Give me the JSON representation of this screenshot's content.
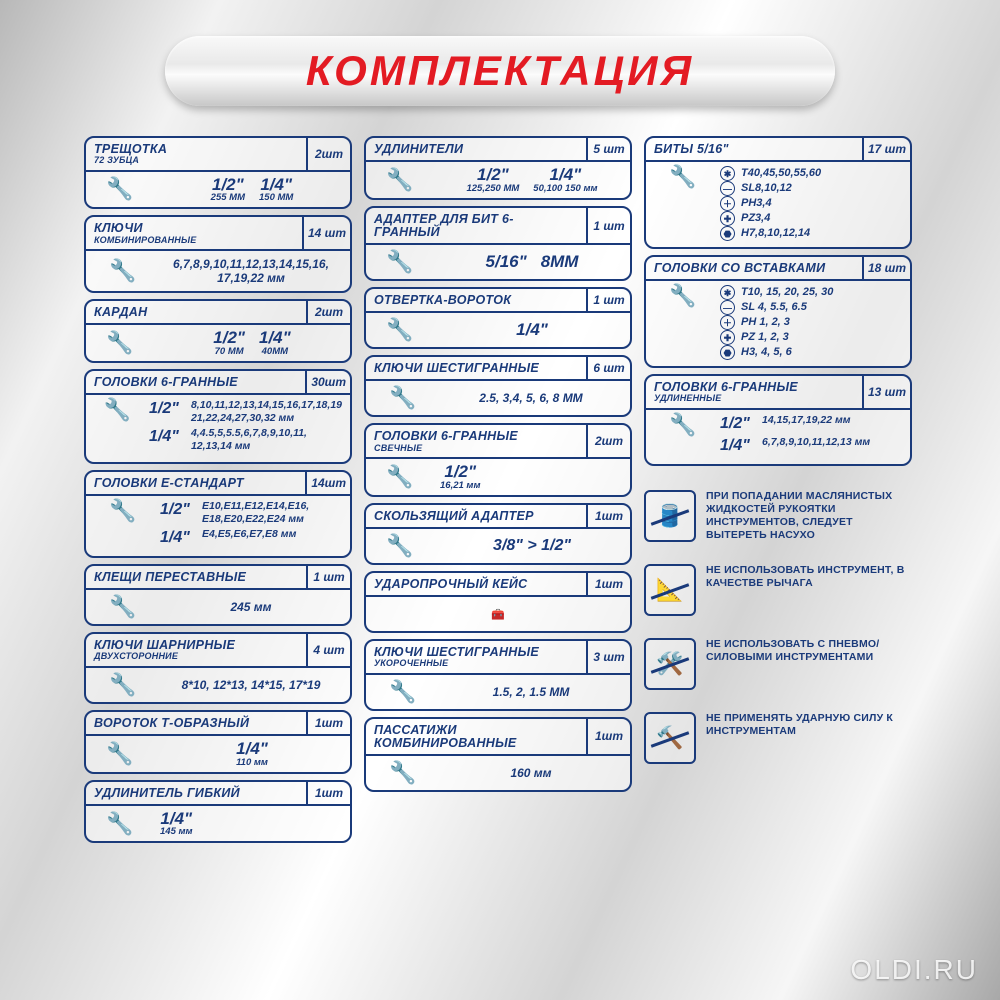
{
  "colors": {
    "primary": "#1a3a7a",
    "accent": "#e31b23"
  },
  "header": {
    "title": "КОМПЛЕКТАЦИЯ"
  },
  "watermark": "OLDI.RU",
  "col1": [
    {
      "title": "ТРЕЩОТКА",
      "sub": "72 ЗУБЦА",
      "qty": "2шт",
      "sizes": [
        {
          "big": "1/2\"",
          "sm": "255 ММ"
        },
        {
          "big": "1/4\"",
          "sm": "150 ММ"
        }
      ]
    },
    {
      "title": "КЛЮЧИ",
      "sub": "КОМБИНИРОВАННЫЕ",
      "qty": "14 шт",
      "text": "6,7,8,9,10,11,12,13,14,15,16, 17,19,22 мм"
    },
    {
      "title": "КАРДАН",
      "qty": "2шт",
      "sizes": [
        {
          "big": "1/2\"",
          "sm": "70 ММ"
        },
        {
          "big": "1/4\"",
          "sm": "40ММ"
        }
      ]
    },
    {
      "title": "ГОЛОВКИ 6-ГРАННЫЕ",
      "qty": "30шт",
      "rows": [
        {
          "lead": "1/2\"",
          "txt": "8,10,11,12,13,14,15,16,17,18,19 21,22,24,27,30,32 мм"
        },
        {
          "lead": "1/4\"",
          "txt": "4,4.5,5,5.5,6,7,8,9,10,11, 12,13,14 мм"
        }
      ]
    },
    {
      "title": "ГОЛОВКИ Е-СТАНДАРТ",
      "qty": "14шт",
      "rows": [
        {
          "lead": "1/2\"",
          "txt": "E10,E11,E12,E14,E16, E18,E20,E22,E24 мм"
        },
        {
          "lead": "1/4\"",
          "txt": "E4,E5,E6,E7,E8 мм"
        }
      ]
    },
    {
      "title": "КЛЕЩИ ПЕРЕСТАВНЫЕ",
      "qty": "1 шт",
      "text": "245 мм"
    },
    {
      "title": "КЛЮЧИ ШАРНИРНЫЕ",
      "sub": "ДВУХСТОРОННИЕ",
      "qty": "4 шт",
      "text": "8*10, 12*13, 14*15, 17*19"
    },
    {
      "title": "ВОРОТОК Т-ОБРАЗНЫЙ",
      "qty": "1шт",
      "sizes": [
        {
          "big": "1/4\"",
          "sm": "110 мм"
        }
      ]
    },
    {
      "title": "УДЛИНИТЕЛЬ ГИБКИЙ",
      "qty": "1шт",
      "sizes": [
        {
          "big": "1/4\"",
          "sm": "145 мм"
        }
      ],
      "inline": true
    }
  ],
  "col2": [
    {
      "title": "УДЛИНИТЕЛИ",
      "qty": "5 шт",
      "sizes": [
        {
          "big": "1/2\"",
          "sm": "125,250 ММ"
        },
        {
          "big": "1/4\"",
          "sm": "50,100 150 мм"
        }
      ]
    },
    {
      "title": "АДАПТЕР ДЛЯ БИТ 6-ГРАННЫЙ",
      "qty": "1 шт",
      "sizes": [
        {
          "big": "5/16\"",
          "sm": ""
        },
        {
          "big": "8ММ",
          "sm": ""
        }
      ]
    },
    {
      "title": "ОТВЕРТКА-ВОРОТОК",
      "qty": "1 шт",
      "sizes": [
        {
          "big": "1/4\"",
          "sm": ""
        }
      ]
    },
    {
      "title": "КЛЮЧИ ШЕСТИГРАННЫЕ",
      "qty": "6 шт",
      "text": "2.5, 3,4, 5, 6, 8 ММ"
    },
    {
      "title": "ГОЛОВКИ 6-ГРАННЫЕ",
      "sub": "СВЕЧНЫЕ",
      "qty": "2шт",
      "sizes": [
        {
          "big": "1/2\"",
          "sm": "16,21 мм"
        }
      ],
      "inline": true
    },
    {
      "title": "СКОЛЬЗЯЩИЙ АДАПТЕР",
      "qty": "1шт",
      "center": "3/8\" > 1/2\""
    },
    {
      "title": "УДАРОПРОЧНЫЙ КЕЙС",
      "qty": "1шт",
      "imgonly": true
    },
    {
      "title": "КЛЮЧИ ШЕСТИГРАННЫЕ",
      "sub": "УКОРОЧЕННЫЕ",
      "qty": "3 шт",
      "text": "1.5, 2, 1.5 ММ"
    },
    {
      "title": "ПАССАТИЖИ КОМБИНИРОВАННЫЕ",
      "qty": "1шт",
      "text": "160 мм"
    }
  ],
  "col3": {
    "cards": [
      {
        "title": "БИТЫ  5/16\"",
        "qty": "17 шт",
        "bullets": [
          {
            "ico": "✱",
            "txt": "T40,45,50,55,60"
          },
          {
            "ico": "—",
            "txt": "SL8,10,12"
          },
          {
            "ico": "＋",
            "txt": "PH3,4"
          },
          {
            "ico": "✚",
            "txt": "PZ3,4"
          },
          {
            "ico": "⬣",
            "txt": "H7,8,10,12,14"
          }
        ]
      },
      {
        "title": "ГОЛОВКИ СО ВСТАВКАМИ",
        "qty": "18 шт",
        "bullets": [
          {
            "ico": "✱",
            "txt": "T10, 15, 20, 25, 30"
          },
          {
            "ico": "—",
            "txt": "SL 4, 5.5, 6.5"
          },
          {
            "ico": "＋",
            "txt": "PH 1, 2, 3"
          },
          {
            "ico": "✚",
            "txt": "PZ 1, 2, 3"
          },
          {
            "ico": "⬣",
            "txt": "H3, 4, 5, 6"
          }
        ]
      },
      {
        "title": "ГОЛОВКИ 6-ГРАННЫЕ",
        "sub": "УДЛИНЕННЫЕ",
        "qty": "13 шт",
        "rows": [
          {
            "lead": "1/2\"",
            "txt": "14,15,17,19,22 мм"
          },
          {
            "lead": "1/4\"",
            "txt": "6,7,8,9,10,11,12,13 мм"
          }
        ]
      }
    ],
    "warnings": [
      "ПРИ ПОПАДАНИИ МАСЛЯНИСТЫХ ЖИДКОСТЕЙ РУКОЯТКИ ИНСТРУМЕНТОВ, СЛЕДУЕТ ВЫТЕРЕТЬ НАСУХО",
      "НЕ ИСПОЛЬЗОВАТЬ ИНСТРУМЕНТ, В КАЧЕСТВЕ РЫЧАГА",
      "НЕ ИСПОЛЬЗОВАТЬ С ПНЕВМО/СИЛОВЫМИ ИНСТРУМЕНТАМИ",
      "НЕ ПРИМЕНЯТЬ УДАРНУЮ СИЛУ К ИНСТРУМЕНТАМ"
    ]
  }
}
